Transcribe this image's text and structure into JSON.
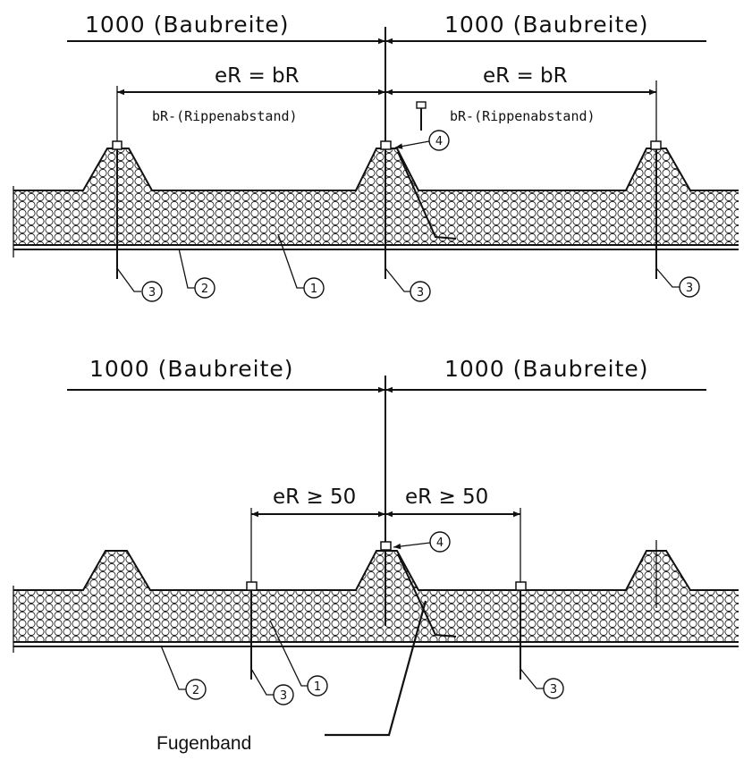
{
  "top": {
    "left_width_label": "1000 (Baubreite)",
    "right_width_label": "1000 (Baubreite)",
    "left_er_label": "eR = bR",
    "right_er_label": "eR = bR",
    "left_rib_label": "bR-(Rippenabstand)",
    "right_rib_label": "bR-(Rippenabstand)",
    "callouts": [
      "4",
      "3",
      "2",
      "1",
      "3",
      "3"
    ]
  },
  "bottom": {
    "left_width_label": "1000  (Baubreite)",
    "right_width_label": "1000  (Baubreite)",
    "left_er_label": "eR ≥ 50",
    "right_er_label": "eR ≥ 50",
    "callouts": [
      "4",
      "2",
      "3",
      "1",
      "3"
    ],
    "fugenband_label": "Fugenband"
  }
}
